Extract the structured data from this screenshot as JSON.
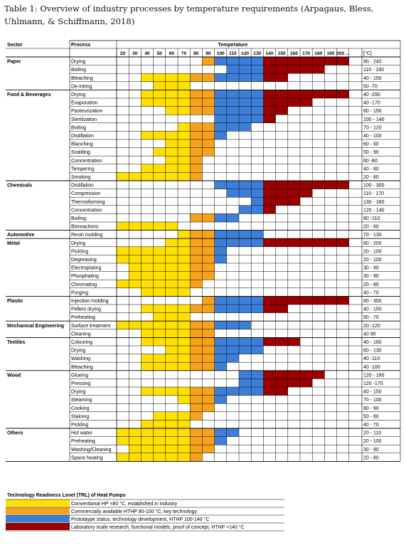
{
  "caption": "Table 1: Overview of industry processes by temperature requirements (Arpagaus, Bless, Uhlmann, & Schiffmann, 2018)",
  "chart_data": {
    "type": "heatmap",
    "headers": {
      "sector": "Sector",
      "process": "Process",
      "temperature": "Temperature",
      "range": "[°C]"
    },
    "temperatures": [
      "20",
      "30",
      "40",
      "50",
      "60",
      "70",
      "80",
      "90",
      "100",
      "110",
      "120",
      "130",
      "140",
      "150",
      "160",
      "170",
      "180",
      "190",
      "200 ..."
    ],
    "legend_title": "Technology Readiness Level (TRL) of Heat Pumps",
    "levels": [
      {
        "label": "Conventional HP <80 °C, established in industry",
        "color": "#FFE000"
      },
      {
        "label": "Commercially available HTHP 80-100 °C, key technology",
        "color": "#F7A21B"
      },
      {
        "label": "Prototaype status, technology development, HTHP 100-140 °C",
        "color": "#3D7FD8"
      },
      {
        "label": "Laboratory scale research, functional models, proof of concept, HTHP >140 °C",
        "color": "#9B0000"
      }
    ],
    "rows": [
      {
        "sector": "Paper",
        "process": "Drying",
        "range": "90 - 240",
        "from": 90,
        "to": 200
      },
      {
        "sector": "",
        "process": "Boiling",
        "range": "110 - 180",
        "from": 110,
        "to": 180
      },
      {
        "sector": "",
        "process": "Bleaching",
        "range": "40 - 150",
        "from": 40,
        "to": 150
      },
      {
        "sector": "",
        "process": "De-inking",
        "range": "50 -70",
        "from": 50,
        "to": 70
      },
      {
        "sector": "Food & Beverages",
        "process": "Drying",
        "range": "40 -250",
        "from": 40,
        "to": 200
      },
      {
        "sector": "",
        "process": "Evaporation",
        "range": "40 -170",
        "from": 40,
        "to": 170
      },
      {
        "sector": "",
        "process": "Pasteurization",
        "range": "60 - 150",
        "from": 60,
        "to": 150
      },
      {
        "sector": "",
        "process": "Sterilization",
        "range": "100 - 140",
        "from": 100,
        "to": 140
      },
      {
        "sector": "",
        "process": "Boiling",
        "range": "70 - 120",
        "from": 70,
        "to": 120
      },
      {
        "sector": "",
        "process": "Distillation",
        "range": "40 - 100",
        "from": 40,
        "to": 100
      },
      {
        "sector": "",
        "process": "Blanching",
        "range": "60 - 90",
        "from": 60,
        "to": 90
      },
      {
        "sector": "",
        "process": "Scalding",
        "range": "50 - 90",
        "from": 50,
        "to": 90
      },
      {
        "sector": "",
        "process": "Concentration",
        "range": "60 -80",
        "from": 60,
        "to": 80
      },
      {
        "sector": "",
        "process": "Tempering",
        "range": "40 - 80",
        "from": 40,
        "to": 80
      },
      {
        "sector": "",
        "process": "Smoking",
        "range": "20 - 80",
        "from": 20,
        "to": 80
      },
      {
        "sector": "Chemicals",
        "process": "Distillation",
        "range": "100 - 300",
        "from": 100,
        "to": 200
      },
      {
        "sector": "",
        "process": "Compression",
        "range": "110 - 170",
        "from": 110,
        "to": 170
      },
      {
        "sector": "",
        "process": "Thermoforming",
        "range": "130 - 160",
        "from": 130,
        "to": 160
      },
      {
        "sector": "",
        "process": "Concentration",
        "range": "120 - 140",
        "from": 120,
        "to": 140
      },
      {
        "sector": "",
        "process": "Boiling",
        "range": "80 -110",
        "from": 80,
        "to": 110
      },
      {
        "sector": "",
        "process": "Bioreactions",
        "range": "20 - 60",
        "from": 20,
        "to": 60
      },
      {
        "sector": "Automotive",
        "process": "Resin molding",
        "range": "70 - 130",
        "from": 70,
        "to": 130
      },
      {
        "sector": "Metal",
        "process": "Drying",
        "range": "60 - 200",
        "from": 60,
        "to": 200
      },
      {
        "sector": "",
        "process": "Pickling",
        "range": "20 - 100",
        "from": 20,
        "to": 100
      },
      {
        "sector": "",
        "process": "Degreasing",
        "range": "20 - 100",
        "from": 20,
        "to": 100
      },
      {
        "sector": "",
        "process": "Electroplating",
        "range": "30 - 90",
        "from": 30,
        "to": 90
      },
      {
        "sector": "",
        "process": "Phosphating",
        "range": "30 - 90",
        "from": 30,
        "to": 90
      },
      {
        "sector": "",
        "process": "Chromating",
        "range": "20 - 80",
        "from": 20,
        "to": 80
      },
      {
        "sector": "",
        "process": "Purging",
        "range": "40 - 70",
        "from": 40,
        "to": 70
      },
      {
        "sector": "Plastic",
        "process": "Injection molding",
        "range": "90 - 300",
        "from": 90,
        "to": 200
      },
      {
        "sector": "",
        "process": "Pellets drying",
        "range": "40 - 150",
        "from": 40,
        "to": 150
      },
      {
        "sector": "",
        "process": "Preheating",
        "range": "50 - 70",
        "from": 50,
        "to": 70
      },
      {
        "sector": "Mechanical Engineering",
        "process": "Surface treatment",
        "range": "20 -120",
        "from": 20,
        "to": 120
      },
      {
        "sector": "",
        "process": "Cleaning",
        "range": "40 90",
        "from": 40,
        "to": 90
      },
      {
        "sector": "Textiles",
        "process": "Colouring",
        "range": "40 - 160",
        "from": 40,
        "to": 160
      },
      {
        "sector": "",
        "process": "Drying",
        "range": "60 - 130",
        "from": 60,
        "to": 130
      },
      {
        "sector": "",
        "process": "Washing",
        "range": "40 -110",
        "from": 40,
        "to": 110
      },
      {
        "sector": "",
        "process": "Bleaching",
        "range": "40 -100",
        "from": 40,
        "to": 100
      },
      {
        "sector": "Wood",
        "process": "Glueing",
        "range": "120 - 180",
        "from": 120,
        "to": 180
      },
      {
        "sector": "",
        "process": "Pressing",
        "range": "120 -170",
        "from": 120,
        "to": 170
      },
      {
        "sector": "",
        "process": "Drying",
        "range": "40 - 150",
        "from": 40,
        "to": 150
      },
      {
        "sector": "",
        "process": "Steaming",
        "range": "70 - 100",
        "from": 70,
        "to": 100
      },
      {
        "sector": "",
        "process": "Cooking",
        "range": "80 - 90",
        "from": 80,
        "to": 90
      },
      {
        "sector": "",
        "process": "Staining",
        "range": "50 - 80",
        "from": 50,
        "to": 80
      },
      {
        "sector": "",
        "process": "Pickling",
        "range": "40 - 70",
        "from": 40,
        "to": 70
      },
      {
        "sector": "Others",
        "process": "Hot water",
        "range": "20 - 110",
        "from": 20,
        "to": 110
      },
      {
        "sector": "",
        "process": "Preheating",
        "range": "20 - 100",
        "from": 20,
        "to": 100
      },
      {
        "sector": "",
        "process": "Washing/Cleaning",
        "range": "30 - 90",
        "from": 30,
        "to": 90
      },
      {
        "sector": "",
        "process": "Space heating",
        "range": "20 - 80",
        "from": 20,
        "to": 80
      }
    ]
  }
}
